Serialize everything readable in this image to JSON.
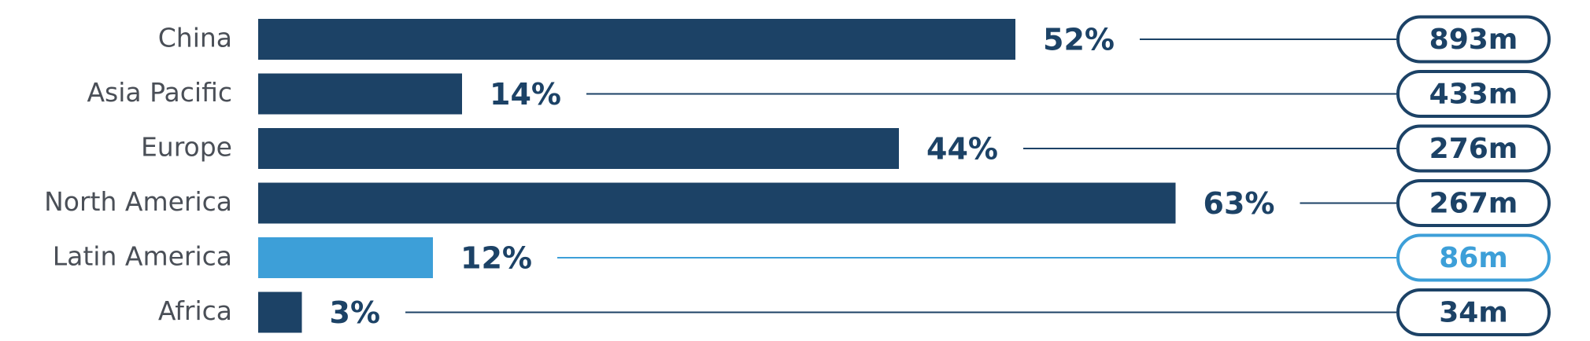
{
  "chart_data": {
    "type": "bar",
    "categories": [
      "China",
      "Asia Pacific",
      "Europe",
      "North America",
      "Latin America",
      "Africa"
    ],
    "values": [
      52,
      14,
      44,
      63,
      12,
      3
    ],
    "value_labels": [
      "52%",
      "14%",
      "44%",
      "63%",
      "12%",
      "3%"
    ],
    "colors": [
      "#1c4266",
      "#1c4266",
      "#1c4266",
      "#1c4266",
      "#3d9fd8",
      "#1c4266"
    ],
    "totals": [
      893,
      433,
      276,
      267,
      86,
      34
    ],
    "total_labels": [
      "893m",
      "433m",
      "276m",
      "267m",
      "86m",
      "34m"
    ]
  }
}
